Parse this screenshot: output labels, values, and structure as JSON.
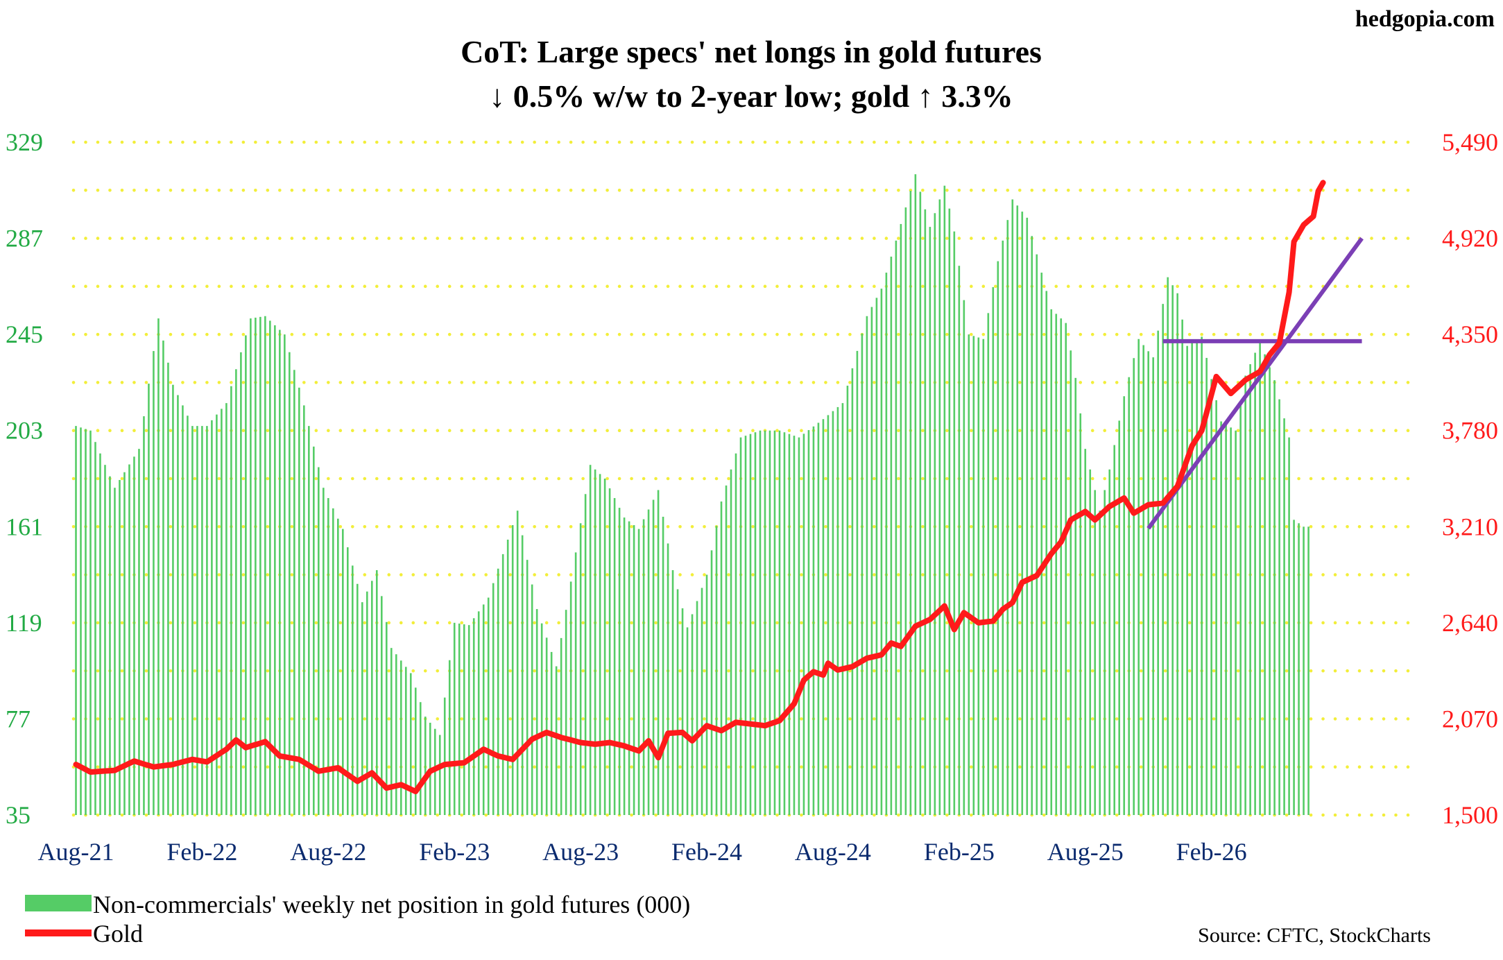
{
  "site": "hedgopia.com",
  "source": "Source: CFTC, StockCharts",
  "chart_data": {
    "type": "bar+line",
    "title_line1": "CoT: Large specs' net longs in gold futures",
    "title_line2": "↓ 0.5% w/w to 2-year low; gold ↑ 3.3%",
    "x_tick_labels": [
      "Aug-21",
      "Feb-22",
      "Aug-22",
      "Feb-23",
      "Aug-23",
      "Feb-24",
      "Aug-24",
      "Feb-25",
      "Aug-25",
      "Feb-26"
    ],
    "left_axis": {
      "ticks": [
        "35",
        "77",
        "119",
        "161",
        "203",
        "245",
        "287",
        "329"
      ],
      "min": 35,
      "max": 329,
      "color": "#22aa44"
    },
    "right_axis": {
      "ticks": [
        "1,500",
        "2,070",
        "2,640",
        "3,210",
        "3,780",
        "4,350",
        "4,920",
        "5,490"
      ],
      "min": 1500,
      "max": 5490,
      "color": "#ff1a1a"
    },
    "grid": "dotted-yellow",
    "legend_placement": "bottom-left",
    "series": [
      {
        "name": "Non-commercials' weekly net position in gold futures (000)",
        "kind": "bars",
        "axis": "left",
        "color": "#55cc66",
        "anchors": [
          [
            0,
            205
          ],
          [
            3,
            203
          ],
          [
            8,
            178
          ],
          [
            13,
            195
          ],
          [
            17,
            252
          ],
          [
            20,
            223
          ],
          [
            24,
            205
          ],
          [
            27,
            205
          ],
          [
            31,
            215
          ],
          [
            36,
            252
          ],
          [
            39,
            253
          ],
          [
            43,
            245
          ],
          [
            47,
            214
          ],
          [
            51,
            178
          ],
          [
            55,
            160
          ],
          [
            59,
            128
          ],
          [
            62,
            142
          ],
          [
            65,
            108
          ],
          [
            69,
            97
          ],
          [
            72,
            78
          ],
          [
            75,
            70
          ],
          [
            78,
            119
          ],
          [
            81,
            118
          ],
          [
            85,
            130
          ],
          [
            91,
            168
          ],
          [
            95,
            125
          ],
          [
            99,
            100
          ],
          [
            102,
            137
          ],
          [
            106,
            188
          ],
          [
            109,
            182
          ],
          [
            113,
            165
          ],
          [
            116,
            160
          ],
          [
            120,
            177
          ],
          [
            123,
            142
          ],
          [
            126,
            117
          ],
          [
            130,
            140
          ],
          [
            133,
            172
          ],
          [
            137,
            200
          ],
          [
            141,
            203
          ],
          [
            145,
            203
          ],
          [
            149,
            200
          ],
          [
            154,
            208
          ],
          [
            158,
            215
          ],
          [
            163,
            253
          ],
          [
            166,
            265
          ],
          [
            169,
            286
          ],
          [
            173,
            315
          ],
          [
            176,
            292
          ],
          [
            179,
            310
          ],
          [
            181,
            290
          ],
          [
            184,
            245
          ],
          [
            187,
            243
          ],
          [
            190,
            277
          ],
          [
            193,
            304
          ],
          [
            196,
            296
          ],
          [
            199,
            272
          ],
          [
            201,
            256
          ],
          [
            204,
            250
          ],
          [
            206,
            226
          ],
          [
            208,
            195
          ],
          [
            211,
            168
          ],
          [
            213,
            186
          ],
          [
            216,
            218
          ],
          [
            219,
            243
          ],
          [
            222,
            235
          ],
          [
            225,
            270
          ],
          [
            227,
            263
          ],
          [
            229,
            240
          ],
          [
            232,
            244
          ],
          [
            236,
            207
          ],
          [
            239,
            203
          ],
          [
            241,
            227
          ],
          [
            244,
            242
          ],
          [
            247,
            225
          ],
          [
            250,
            200
          ],
          [
            251,
            164
          ],
          [
            253,
            161
          ],
          [
            254,
            161
          ]
        ]
      },
      {
        "name": "Gold",
        "kind": "line",
        "axis": "right",
        "color": "#ff1a1a",
        "anchors": [
          [
            0,
            1800
          ],
          [
            3,
            1755
          ],
          [
            8,
            1765
          ],
          [
            12,
            1820
          ],
          [
            16,
            1785
          ],
          [
            20,
            1800
          ],
          [
            24,
            1830
          ],
          [
            27,
            1815
          ],
          [
            31,
            1890
          ],
          [
            33,
            1945
          ],
          [
            35,
            1900
          ],
          [
            39,
            1935
          ],
          [
            42,
            1850
          ],
          [
            46,
            1830
          ],
          [
            50,
            1760
          ],
          [
            54,
            1780
          ],
          [
            58,
            1700
          ],
          [
            61,
            1750
          ],
          [
            64,
            1660
          ],
          [
            67,
            1680
          ],
          [
            70,
            1640
          ],
          [
            73,
            1760
          ],
          [
            76,
            1800
          ],
          [
            80,
            1810
          ],
          [
            84,
            1890
          ],
          [
            87,
            1850
          ],
          [
            90,
            1830
          ],
          [
            94,
            1950
          ],
          [
            97,
            1990
          ],
          [
            100,
            1960
          ],
          [
            104,
            1930
          ],
          [
            107,
            1920
          ],
          [
            110,
            1930
          ],
          [
            113,
            1910
          ],
          [
            116,
            1880
          ],
          [
            118,
            1940
          ],
          [
            120,
            1840
          ],
          [
            122,
            1985
          ],
          [
            125,
            1990
          ],
          [
            127,
            1940
          ],
          [
            130,
            2030
          ],
          [
            133,
            2000
          ],
          [
            136,
            2050
          ],
          [
            139,
            2040
          ],
          [
            142,
            2030
          ],
          [
            145,
            2060
          ],
          [
            148,
            2160
          ],
          [
            150,
            2300
          ],
          [
            152,
            2350
          ],
          [
            154,
            2330
          ],
          [
            155,
            2400
          ],
          [
            157,
            2360
          ],
          [
            160,
            2380
          ],
          [
            163,
            2430
          ],
          [
            166,
            2450
          ],
          [
            168,
            2520
          ],
          [
            170,
            2500
          ],
          [
            173,
            2620
          ],
          [
            176,
            2660
          ],
          [
            179,
            2740
          ],
          [
            181,
            2600
          ],
          [
            183,
            2700
          ],
          [
            186,
            2640
          ],
          [
            189,
            2650
          ],
          [
            191,
            2720
          ],
          [
            193,
            2760
          ],
          [
            195,
            2880
          ],
          [
            198,
            2920
          ],
          [
            201,
            3050
          ],
          [
            203,
            3120
          ],
          [
            205,
            3250
          ],
          [
            208,
            3300
          ],
          [
            210,
            3250
          ],
          [
            213,
            3330
          ],
          [
            216,
            3380
          ],
          [
            218,
            3290
          ],
          [
            221,
            3340
          ],
          [
            224,
            3350
          ],
          [
            227,
            3450
          ],
          [
            230,
            3690
          ],
          [
            232,
            3780
          ],
          [
            235,
            4100
          ],
          [
            238,
            4000
          ],
          [
            241,
            4080
          ],
          [
            244,
            4130
          ],
          [
            246,
            4230
          ],
          [
            248,
            4300
          ],
          [
            250,
            4600
          ],
          [
            251,
            4900
          ],
          [
            253,
            5000
          ],
          [
            255,
            5050
          ],
          [
            256,
            5200
          ],
          [
            257,
            5250
          ]
        ]
      }
    ],
    "annotations": [
      {
        "kind": "horizontal-line",
        "axis": "right",
        "y": 4310,
        "x_from": 224,
        "x_to": 265,
        "color": "#7b3fb5"
      },
      {
        "kind": "trend-line",
        "axis": "right",
        "from": [
          221,
          3200
        ],
        "to": [
          265,
          4920
        ],
        "color": "#7b3fb5"
      }
    ]
  }
}
